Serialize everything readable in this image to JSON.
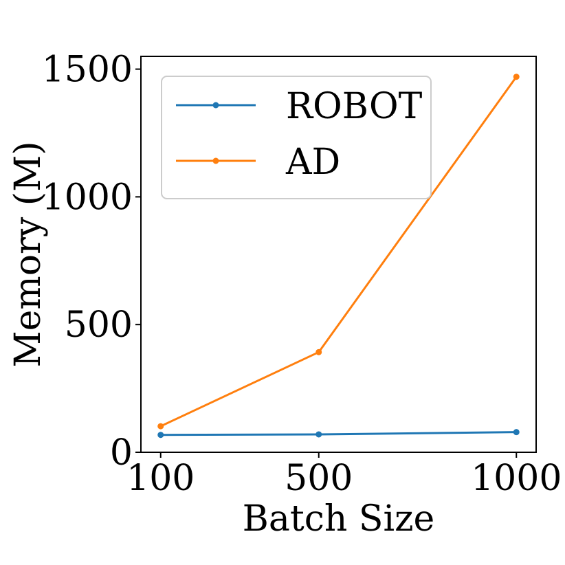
{
  "chart_data": {
    "type": "line",
    "title": "",
    "xlabel": "Batch Size",
    "ylabel": "Memory (M)",
    "x": [
      100,
      500,
      1000
    ],
    "x_tick_labels": [
      "100",
      "500",
      "1000"
    ],
    "y_ticks": [
      0,
      500,
      1000,
      1500
    ],
    "y_tick_labels": [
      "0",
      "500",
      "1000",
      "1500"
    ],
    "xlim": [
      50,
      1050
    ],
    "ylim": [
      0,
      1550
    ],
    "grid": false,
    "legend_position": "top-left",
    "series": [
      {
        "name": "ROBOT",
        "color": "#1f77b4",
        "marker": "circle",
        "values": [
          68,
          70,
          79
        ]
      },
      {
        "name": "AD",
        "color": "#ff7f0e",
        "marker": "circle",
        "values": [
          102,
          392,
          1470
        ]
      }
    ]
  }
}
